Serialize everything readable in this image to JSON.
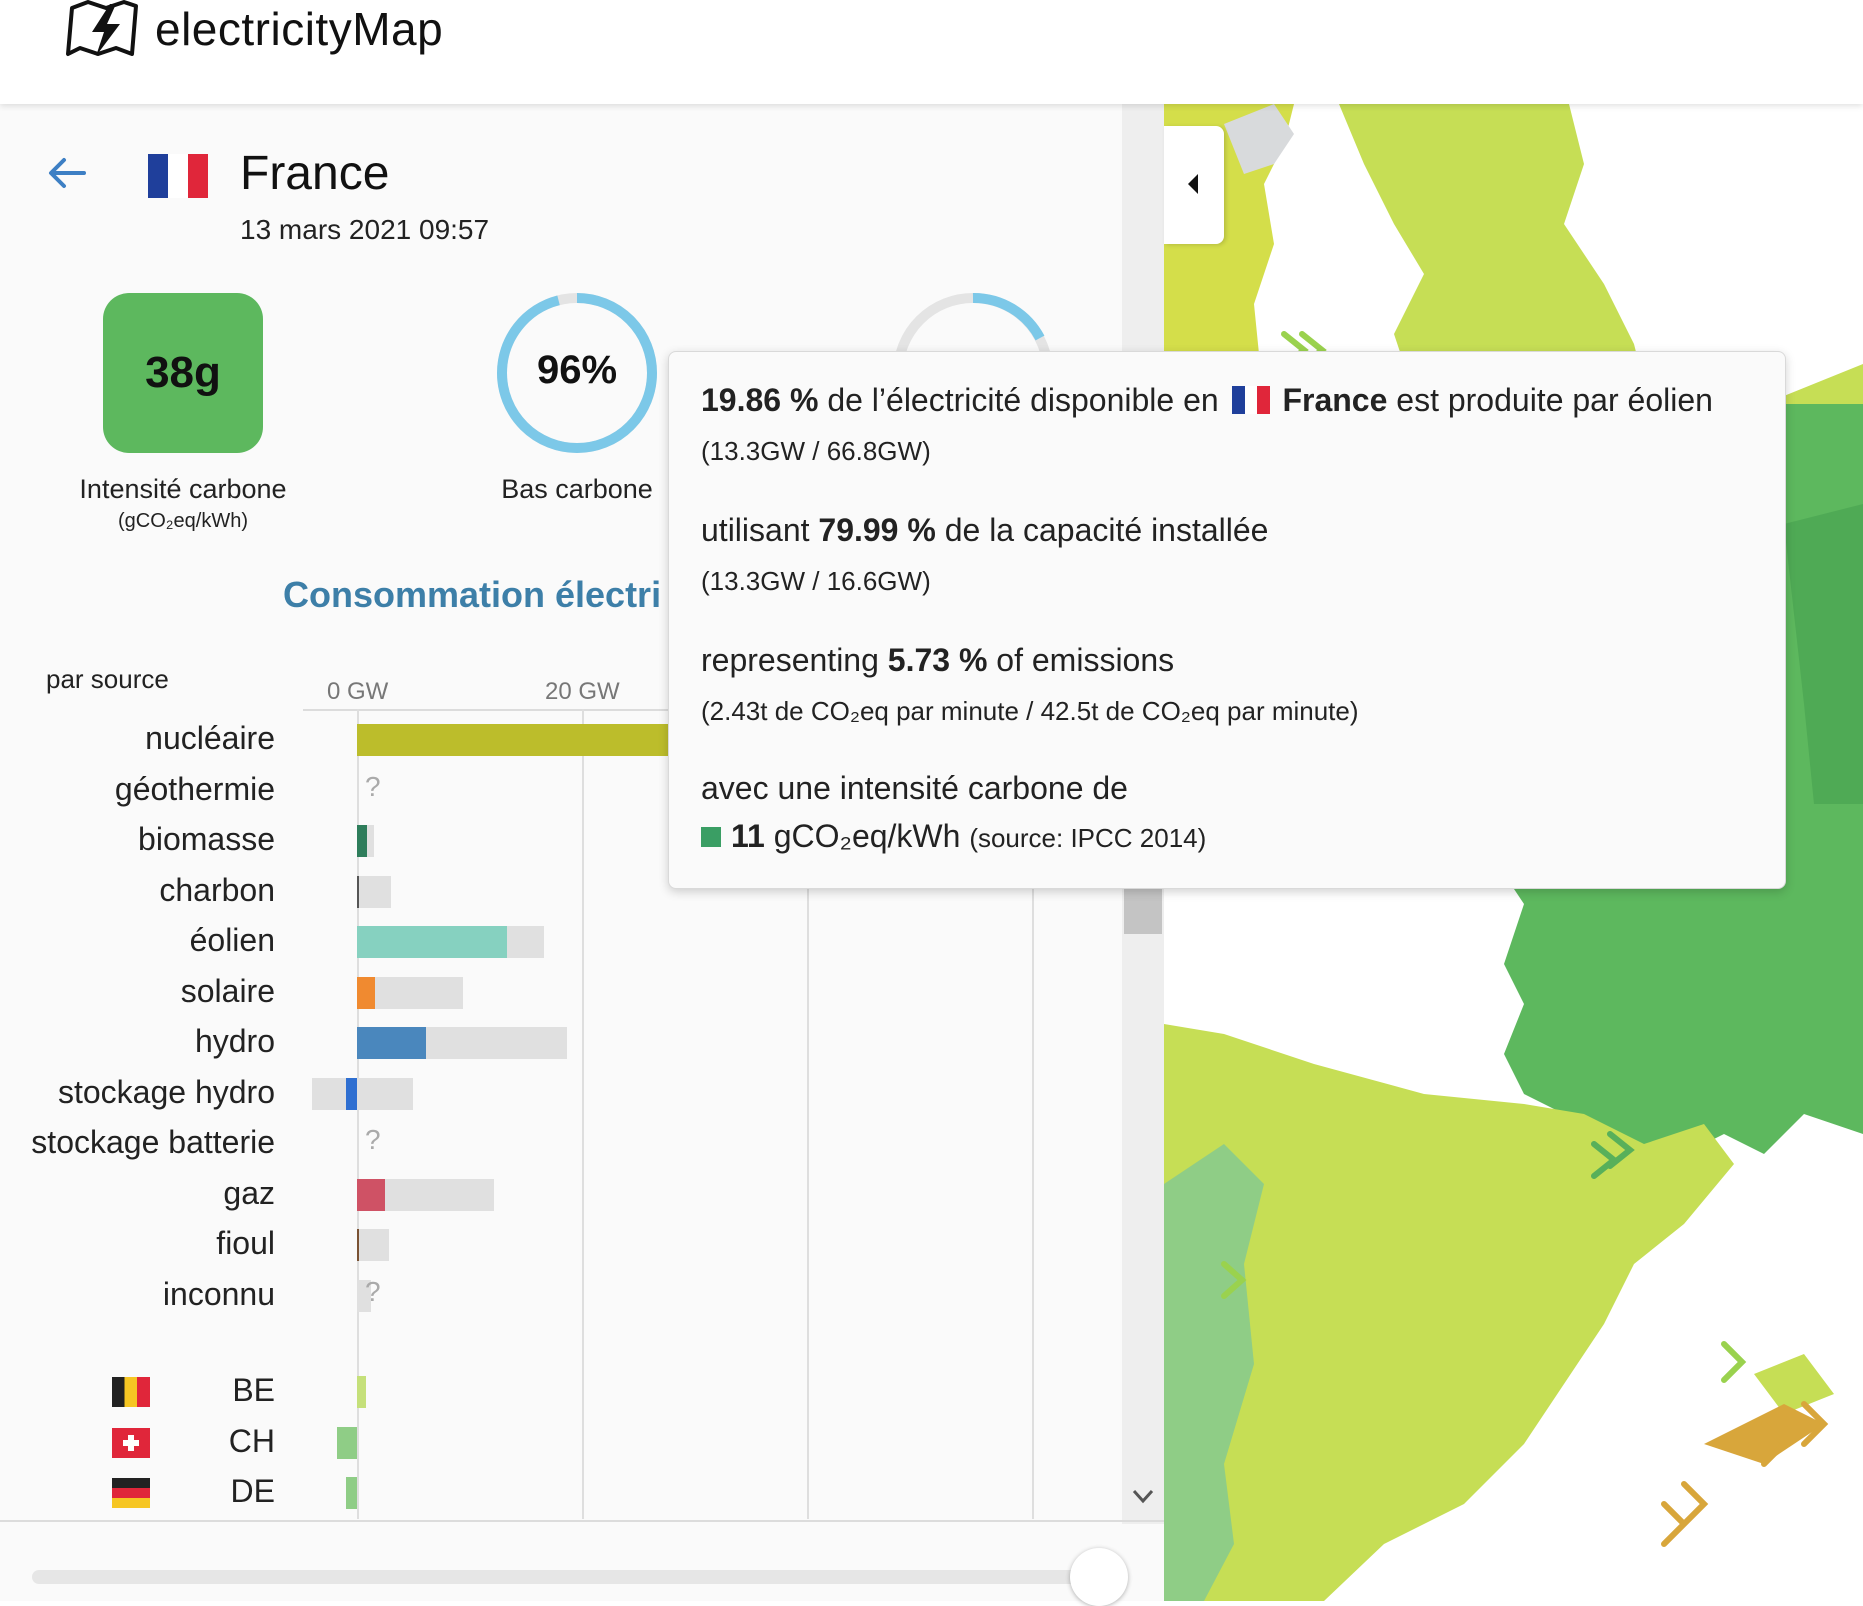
{
  "app": {
    "name": "electricityMap"
  },
  "zone": {
    "country": "France",
    "datetime": "13 mars 2021 09:57"
  },
  "carbon_intensity": {
    "value": "38g",
    "label": "Intensité carbone",
    "unit": "(gCO₂eq/kWh)",
    "box_color": "#5db85e"
  },
  "low_carbon": {
    "value": "96%",
    "label": "Bas carbone",
    "fraction": 0.96,
    "ring_color": "#7cc8e8"
  },
  "section": {
    "title": "Consommation électri",
    "by_source": "par source"
  },
  "axis": {
    "ticks": [
      "0 GW",
      "20 GW"
    ],
    "unit": "GW"
  },
  "production": [
    {
      "name": "nucléaire",
      "value_gw": 35.0,
      "capacity_gw": 61.4,
      "color": "#bcbd2b",
      "unknown": false
    },
    {
      "name": "géothermie",
      "value_gw": null,
      "capacity_gw": null,
      "color": "#cccccc",
      "unknown": true,
      "mark": "?"
    },
    {
      "name": "biomasse",
      "value_gw": 0.9,
      "capacity_gw": 1.5,
      "color": "#2e7d5b",
      "unknown": false
    },
    {
      "name": "charbon",
      "value_gw": 0.0,
      "capacity_gw": 3.0,
      "color": "#555555",
      "unknown": false
    },
    {
      "name": "éolien",
      "value_gw": 13.3,
      "capacity_gw": 16.6,
      "color": "#86d1c0",
      "unknown": false
    },
    {
      "name": "solaire",
      "value_gw": 1.6,
      "capacity_gw": 9.4,
      "color": "#f08a30",
      "unknown": false
    },
    {
      "name": "hydro",
      "value_gw": 6.1,
      "capacity_gw": 18.7,
      "color": "#4a87bd",
      "unknown": false
    },
    {
      "name": "stockage hydro",
      "value_gw": -1.0,
      "capacity_gw": 5.0,
      "capacity_neg_gw": -4.0,
      "color": "#2f6fd1",
      "unknown": false
    },
    {
      "name": "stockage batterie",
      "value_gw": null,
      "capacity_gw": null,
      "color": "#cccccc",
      "unknown": true,
      "mark": "?"
    },
    {
      "name": "gaz",
      "value_gw": 2.5,
      "capacity_gw": 12.2,
      "color": "#cf5265",
      "unknown": false
    },
    {
      "name": "fioul",
      "value_gw": 0.1,
      "capacity_gw": 2.8,
      "color": "#7a5233",
      "unknown": false
    },
    {
      "name": "inconnu",
      "value_gw": null,
      "capacity_gw": 1.2,
      "color": "#cccccc",
      "unknown": true,
      "mark": "?"
    }
  ],
  "exchanges": [
    {
      "code": "BE",
      "value_gw": 0.8,
      "color": "#c5e07a"
    },
    {
      "code": "CH",
      "value_gw": -1.8,
      "color": "#8fcd86"
    },
    {
      "code": "DE",
      "value_gw": -1.0,
      "color": "#8fcd86"
    }
  ],
  "tooltip": {
    "share_pct": "19.86 %",
    "share_pre": "de l’électricité disponible en",
    "share_country": "France",
    "share_post": "est produite par éolien",
    "share_detail": "(13.3GW / 66.8GW)",
    "cap_pre": "utilisant",
    "cap_pct": "79.99 %",
    "cap_post": "de la capacité installée",
    "cap_detail": "(13.3GW / 16.6GW)",
    "em_pre": "representing",
    "em_pct": "5.73 %",
    "em_post": "of emissions",
    "em_detail": "(2.43t de CO₂eq par minute / 42.5t de CO₂eq par minute)",
    "ci_pre": "avec une intensité carbone de",
    "ci_value": "11",
    "ci_unit": "gCO₂eq/kWh",
    "ci_source": "(source: IPCC 2014)",
    "swatch_color": "#3a9e64"
  }
}
